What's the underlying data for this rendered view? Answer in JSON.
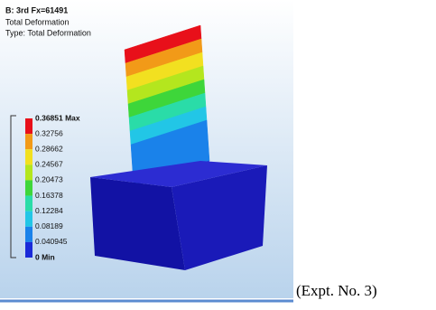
{
  "header": {
    "lines": [
      "B: 3rd  Fx=61491",
      "Total Deformation",
      "Type: Total Deformation"
    ]
  },
  "legend": {
    "labels": [
      "0.36851 Max",
      "0.32756",
      "0.28662",
      "0.24567",
      "0.20473",
      "0.16378",
      "0.12284",
      "0.08189",
      "0.040945",
      "0 Min"
    ],
    "colors": [
      "#e8101a",
      "#f29a18",
      "#f2e020",
      "#b4e61e",
      "#3ed63a",
      "#2adca8",
      "#22c6e6",
      "#1a82ea",
      "#1a2ad8"
    ]
  },
  "caption": "(Expt. No. 3)"
}
